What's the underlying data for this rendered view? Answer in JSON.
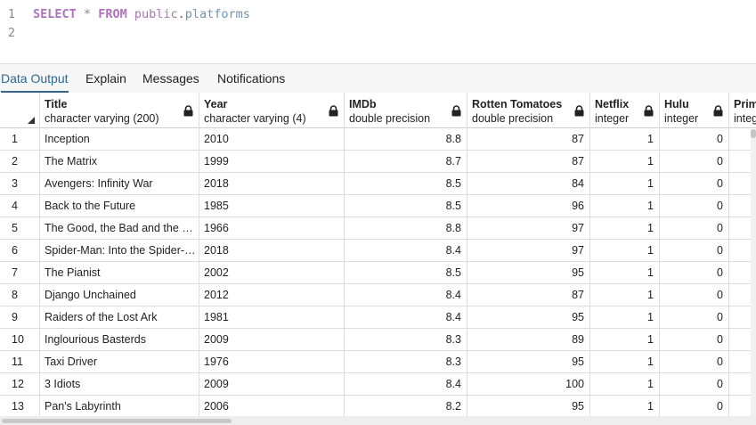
{
  "editor": {
    "line_numbers": [
      "1",
      "2"
    ],
    "query": {
      "select": "SELECT",
      "star": "*",
      "from": "FROM",
      "schema": "public",
      "dot": ".",
      "table": "platforms"
    }
  },
  "tabs": [
    {
      "label": "Data Output",
      "active": true
    },
    {
      "label": "Explain",
      "active": false
    },
    {
      "label": "Messages",
      "active": false
    },
    {
      "label": "Notifications",
      "active": false
    }
  ],
  "columns": [
    {
      "name": "Title",
      "type": "character varying (200)",
      "align": "left"
    },
    {
      "name": "Year",
      "type": "character varying (4)",
      "align": "left"
    },
    {
      "name": "IMDb",
      "type": "double precision",
      "align": "right"
    },
    {
      "name": "Rotten Tomatoes",
      "type": "double precision",
      "align": "right"
    },
    {
      "name": "Netflix",
      "type": "integer",
      "align": "right"
    },
    {
      "name": "Hulu",
      "type": "integer",
      "align": "right"
    },
    {
      "name": "Prim",
      "type": "integ",
      "align": "right"
    }
  ],
  "rows": [
    {
      "num": "1",
      "cells": [
        "Inception",
        "2010",
        "8.8",
        "87",
        "1",
        "0",
        ""
      ]
    },
    {
      "num": "2",
      "cells": [
        "The Matrix",
        "1999",
        "8.7",
        "87",
        "1",
        "0",
        ""
      ]
    },
    {
      "num": "3",
      "cells": [
        "Avengers: Infinity War",
        "2018",
        "8.5",
        "84",
        "1",
        "0",
        ""
      ]
    },
    {
      "num": "4",
      "cells": [
        "Back to the Future",
        "1985",
        "8.5",
        "96",
        "1",
        "0",
        ""
      ]
    },
    {
      "num": "5",
      "cells": [
        "The Good, the Bad and the Ugly",
        "1966",
        "8.8",
        "97",
        "1",
        "0",
        ""
      ]
    },
    {
      "num": "6",
      "cells": [
        "Spider-Man: Into the Spider-V...",
        "2018",
        "8.4",
        "97",
        "1",
        "0",
        ""
      ]
    },
    {
      "num": "7",
      "cells": [
        "The Pianist",
        "2002",
        "8.5",
        "95",
        "1",
        "0",
        ""
      ]
    },
    {
      "num": "8",
      "cells": [
        "Django Unchained",
        "2012",
        "8.4",
        "87",
        "1",
        "0",
        ""
      ]
    },
    {
      "num": "9",
      "cells": [
        "Raiders of the Lost Ark",
        "1981",
        "8.4",
        "95",
        "1",
        "0",
        ""
      ]
    },
    {
      "num": "10",
      "cells": [
        "Inglourious Basterds",
        "2009",
        "8.3",
        "89",
        "1",
        "0",
        ""
      ]
    },
    {
      "num": "11",
      "cells": [
        "Taxi Driver",
        "1976",
        "8.3",
        "95",
        "1",
        "0",
        ""
      ]
    },
    {
      "num": "12",
      "cells": [
        "3 Idiots",
        "2009",
        "8.4",
        "100",
        "1",
        "0",
        ""
      ]
    },
    {
      "num": "13",
      "cells": [
        "Pan's Labyrinth",
        "2006",
        "8.2",
        "95",
        "1",
        "0",
        ""
      ]
    }
  ],
  "icons": {
    "column_lock": "lock-icon",
    "sort": "sort-indicator-icon"
  },
  "colors": {
    "keyword": "#b26fc4",
    "table_name": "#6b94c2",
    "active_tab": "#326690"
  }
}
